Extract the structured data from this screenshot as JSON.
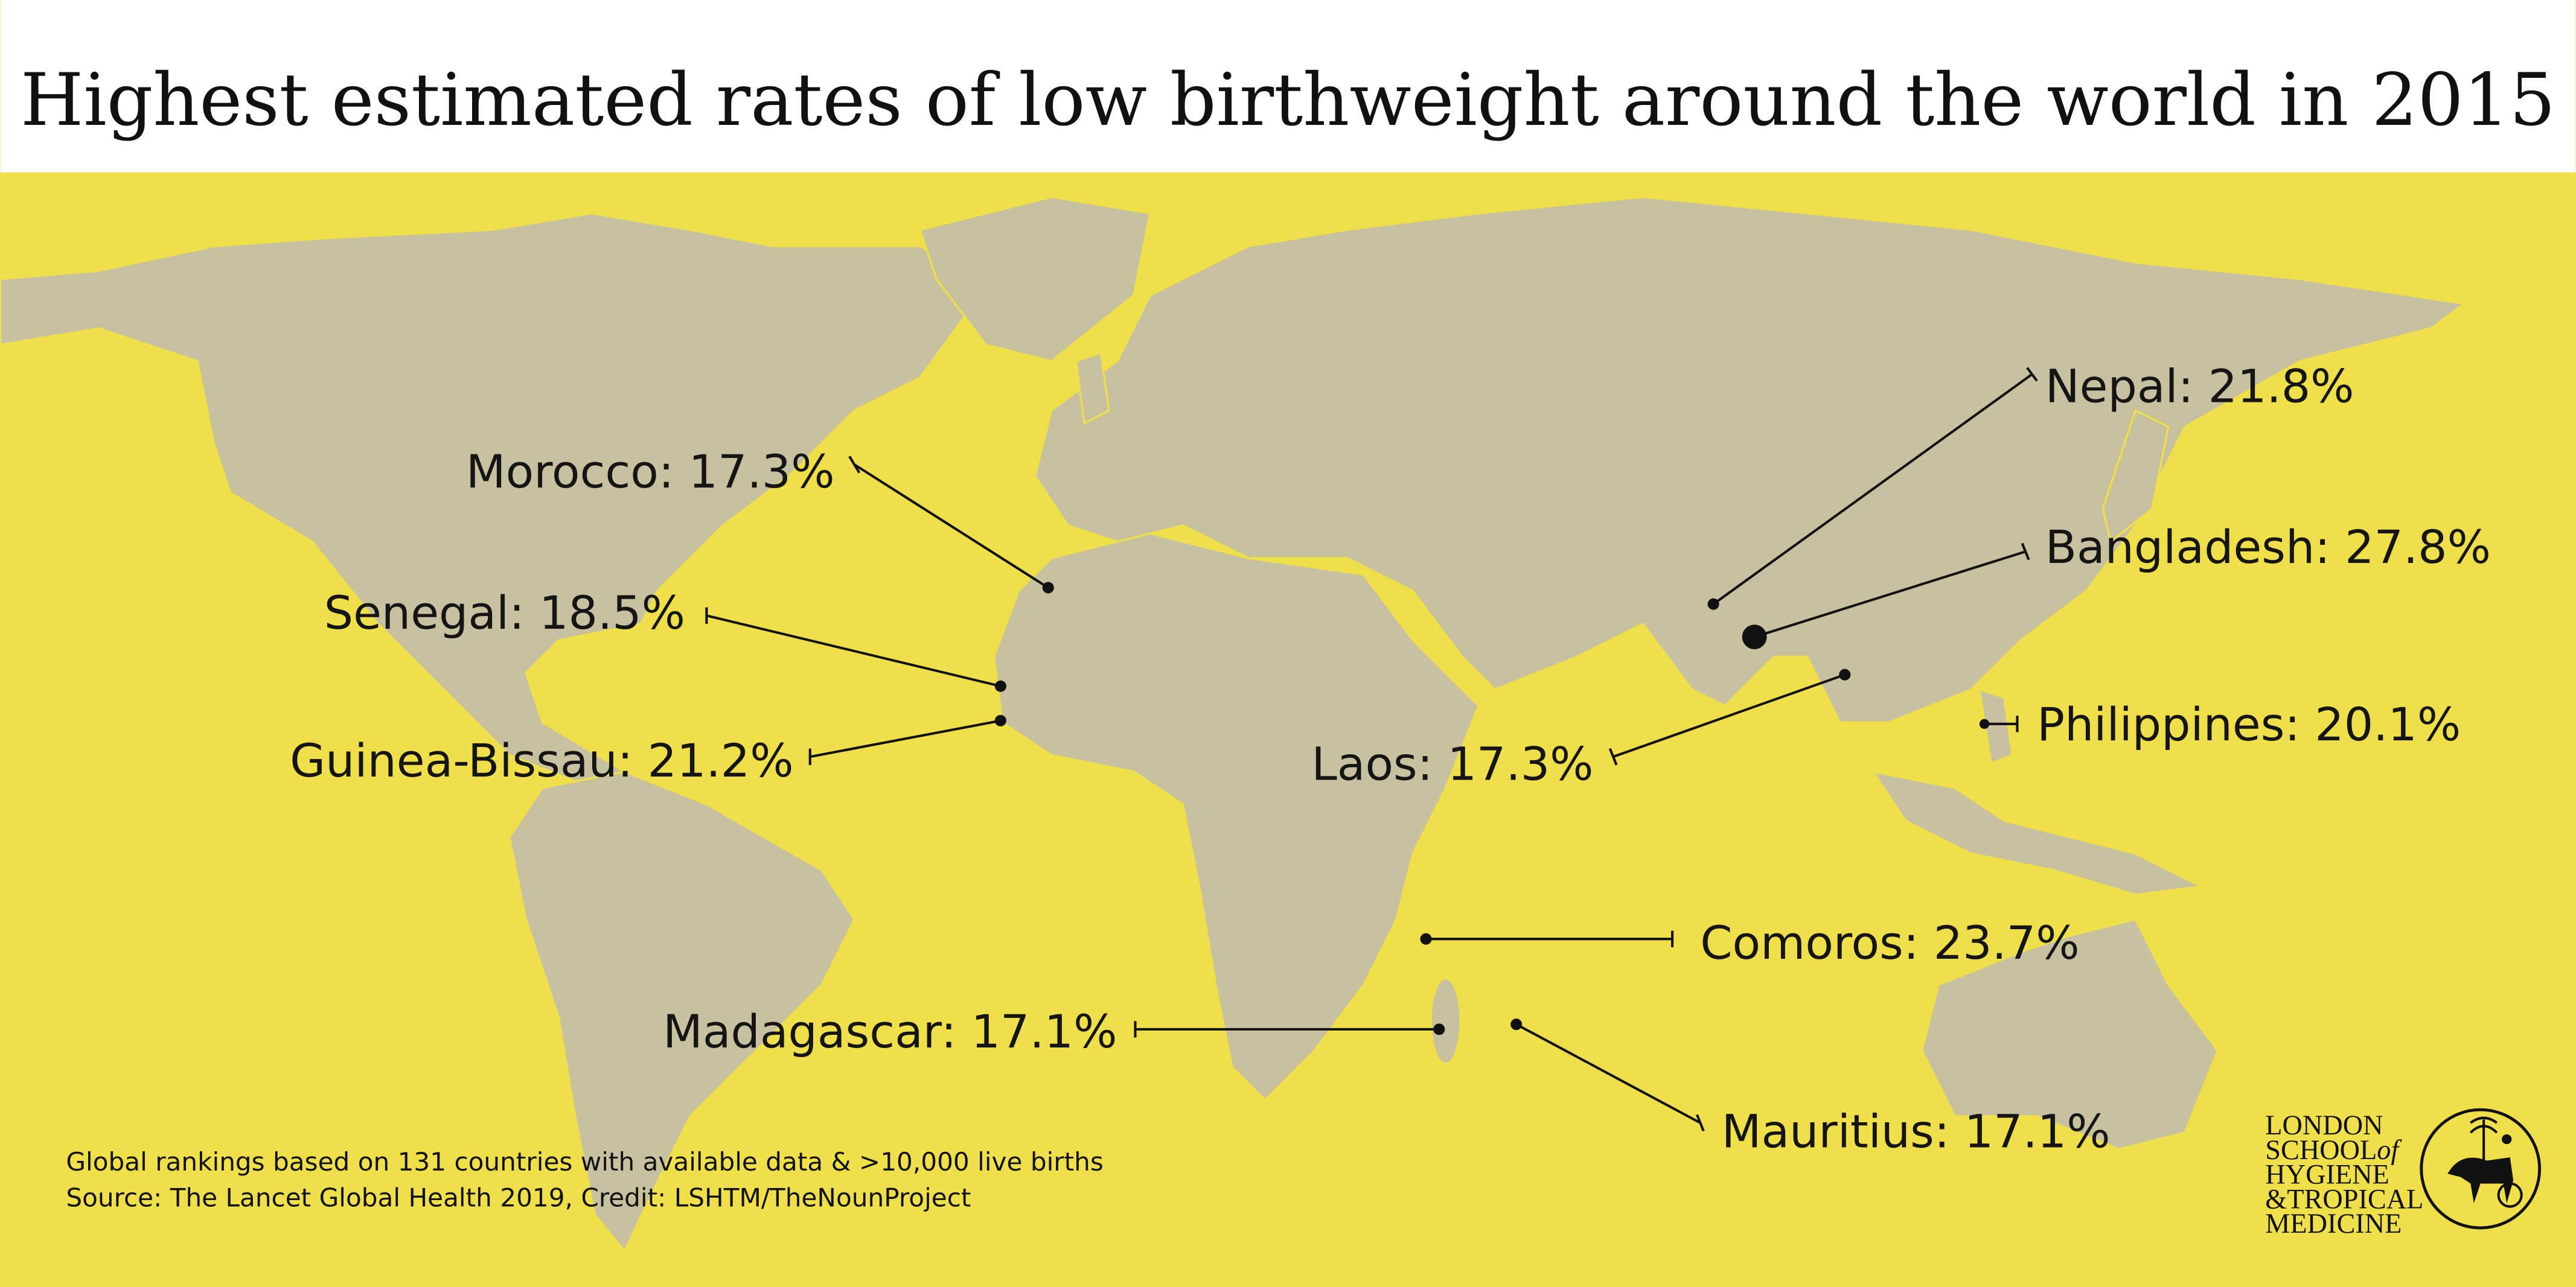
{
  "title": "Highest estimated rates of low birthweight around the world in 2015",
  "colors": {
    "background": "#efe04a",
    "land": "#c7c19f",
    "header": "#ffffff",
    "text": "#111111"
  },
  "callouts": [
    {
      "label": "Morocco: 17.3%",
      "country": "Morocco",
      "rate": 17.3
    },
    {
      "label": "Senegal: 18.5%",
      "country": "Senegal",
      "rate": 18.5
    },
    {
      "label": "Guinea-Bissau: 21.2%",
      "country": "Guinea-Bissau",
      "rate": 21.2
    },
    {
      "label": "Nepal: 21.8%",
      "country": "Nepal",
      "rate": 21.8
    },
    {
      "label": "Bangladesh: 27.8%",
      "country": "Bangladesh",
      "rate": 27.8
    },
    {
      "label": "Philippines: 20.1%",
      "country": "Philippines",
      "rate": 20.1
    },
    {
      "label": "Laos: 17.3%",
      "country": "Laos",
      "rate": 17.3
    },
    {
      "label": "Comoros: 23.7%",
      "country": "Comoros",
      "rate": 23.7
    },
    {
      "label": "Madagascar: 17.1%",
      "country": "Madagascar",
      "rate": 17.1
    },
    {
      "label": "Mauritius: 17.1%",
      "country": "Mauritius",
      "rate": 17.1
    }
  ],
  "footer": {
    "line1": "Global rankings based on 131 countries with available data & >10,000 live births",
    "line2": "Source: The Lancet Global Health 2019, Credit: LSHTM/TheNounProject"
  },
  "logo": {
    "line1": "LONDON",
    "line2": "SCHOOL",
    "line2b": "of",
    "line3": "HYGIENE",
    "line4": "&TROPICAL",
    "line5": "MEDICINE"
  }
}
